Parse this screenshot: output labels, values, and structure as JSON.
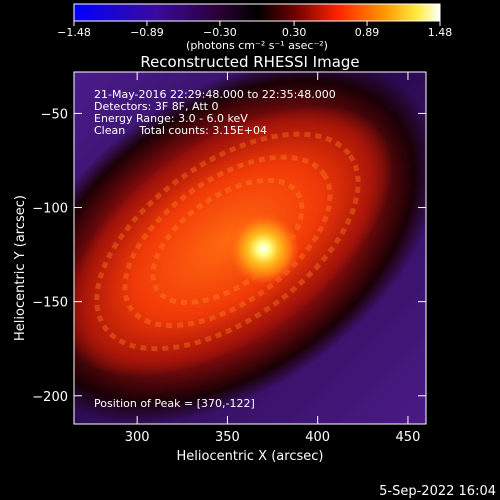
{
  "chart_data": {
    "type": "heatmap",
    "title": "Reconstructed RHESSI Image",
    "xlabel": "Heliocentric X (arcsec)",
    "ylabel": "Heliocentric Y (arcsec)",
    "xlim": [
      265,
      460
    ],
    "ylim": [
      -215,
      -28
    ],
    "x_ticks": [
      300,
      350,
      400,
      450
    ],
    "y_ticks": [
      -50,
      -100,
      -150,
      -200
    ],
    "x_tick_labels": [
      "300",
      "350",
      "400",
      "450"
    ],
    "y_tick_labels": [
      "−50",
      "−100",
      "−150",
      "−200"
    ],
    "colorbar": {
      "min": -1.48,
      "max": 1.48,
      "ticks": [
        -1.48,
        -0.89,
        -0.3,
        0.3,
        0.89,
        1.48
      ],
      "tick_labels": [
        "−1.48",
        "−0.89",
        "−0.30",
        "0.30",
        "0.89",
        "1.48"
      ],
      "units": "(photons cm⁻² s⁻¹ asec⁻²)"
    },
    "annotations": {
      "time_range": "21-May-2016 22:29:48.000 to 22:35:48.000",
      "detectors": "Detectors: 3F 8F, Att 0",
      "energy_range": "Energy Range: 3.0 - 6.0 keV",
      "method_counts": "Clean    Total counts: 3.15E+04",
      "peak": "Position of Peak = [370,-122]"
    },
    "peak": {
      "x": 370,
      "y": -122
    },
    "source": {
      "center_x": 350,
      "center_y": -118,
      "major_axis_arcsec": 105,
      "minor_axis_arcsec": 55,
      "angle_deg": 35
    }
  },
  "footer": {
    "date": "5-Sep-2022 16:04"
  },
  "colors": {
    "background": "#000000",
    "text": "#ffffff",
    "colormap": "Red Temperature (blue to white)"
  }
}
